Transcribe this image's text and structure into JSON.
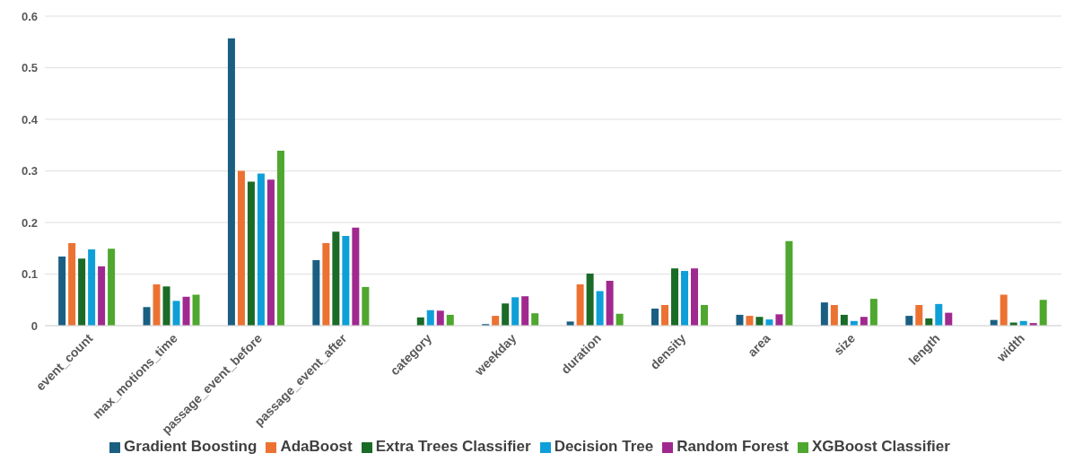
{
  "chart_data": {
    "type": "bar",
    "categories": [
      "event_count",
      "max_motions_time",
      "passage_event_before",
      "passage_event_after",
      "category",
      "weekday",
      "duration",
      "density",
      "area",
      "size",
      "length",
      "width"
    ],
    "series": [
      {
        "name": "Gradient Boosting",
        "color": "#1a5f82",
        "values": [
          0.134,
          0.036,
          0.557,
          0.127,
          0,
          0.003,
          0.008,
          0.033,
          0.021,
          0.045,
          0.019,
          0.011
        ]
      },
      {
        "name": "AdaBoost",
        "color": "#ec7232",
        "values": [
          0.16,
          0.08,
          0.3,
          0.16,
          0,
          0.019,
          0.08,
          0.04,
          0.019,
          0.04,
          0.04,
          0.06
        ]
      },
      {
        "name": "Extra Trees Classifier",
        "color": "#1a6b27",
        "values": [
          0.13,
          0.076,
          0.279,
          0.182,
          0.016,
          0.043,
          0.101,
          0.111,
          0.017,
          0.021,
          0.014,
          0.006
        ]
      },
      {
        "name": "Decision Tree",
        "color": "#0f9fd8",
        "values": [
          0.148,
          0.048,
          0.295,
          0.174,
          0.03,
          0.055,
          0.067,
          0.106,
          0.012,
          0.009,
          0.042,
          0.009
        ]
      },
      {
        "name": "Random Forest",
        "color": "#a0298f",
        "values": [
          0.115,
          0.056,
          0.283,
          0.19,
          0.029,
          0.057,
          0.087,
          0.111,
          0.022,
          0.017,
          0.025,
          0.005
        ]
      },
      {
        "name": "XGBoost Classifier",
        "color": "#4ea72e",
        "values": [
          0.149,
          0.06,
          0.339,
          0.075,
          0.021,
          0.024,
          0.023,
          0.04,
          0.164,
          0.052,
          0,
          0.05
        ]
      }
    ],
    "ylim": [
      0,
      0.6
    ],
    "yticks": [
      0,
      0.1,
      0.2,
      0.3,
      0.4,
      0.5,
      0.6
    ],
    "grid": "y",
    "legend": "bottom"
  }
}
